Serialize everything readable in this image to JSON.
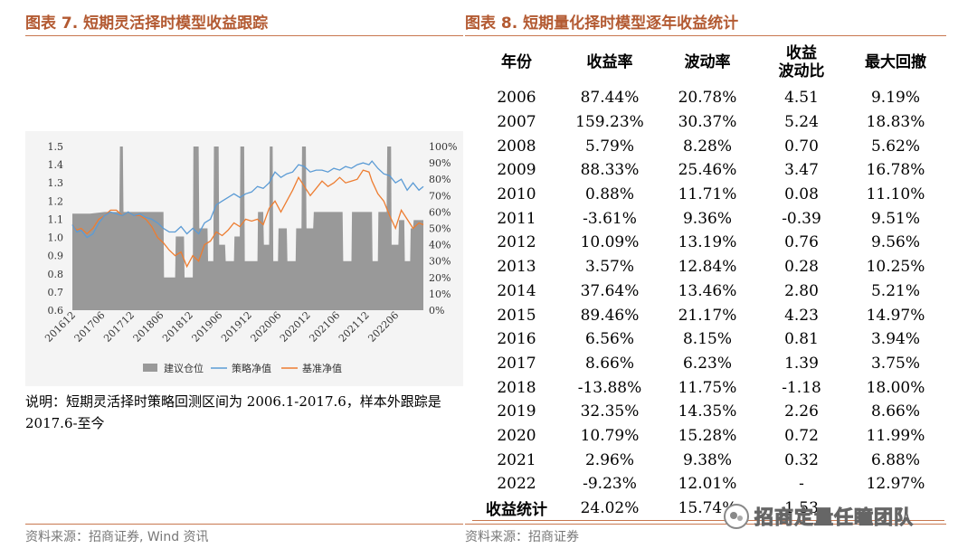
{
  "left_figure": {
    "title": "图表 7. 短期灵活择时模型收益跟踪",
    "note": "说明：短期灵活择时策略回测区间为 2006.1-2017.6，样本外跟踪是 2017.6-至今",
    "source": "资料来源：招商证券, Wind 资讯"
  },
  "right_figure": {
    "title": "图表 8. 短期量化择时模型逐年收益统计",
    "source": "资料来源：招商证券"
  },
  "watermark": {
    "text": "招商定量任瞳团队",
    "icon": "wechat-icon"
  },
  "table": {
    "headers": [
      "年份",
      "收益率",
      "波动率",
      "收益\n波动比",
      "最大回撤"
    ],
    "rows": [
      [
        "2006",
        "87.44%",
        "20.78%",
        "4.51",
        "9.19%"
      ],
      [
        "2007",
        "159.23%",
        "30.37%",
        "5.24",
        "18.83%"
      ],
      [
        "2008",
        "5.79%",
        "8.28%",
        "0.70",
        "5.62%"
      ],
      [
        "2009",
        "88.33%",
        "25.46%",
        "3.47",
        "16.78%"
      ],
      [
        "2010",
        "0.88%",
        "11.71%",
        "0.08",
        "11.10%"
      ],
      [
        "2011",
        "-3.61%",
        "9.36%",
        "-0.39",
        "9.51%"
      ],
      [
        "2012",
        "10.09%",
        "13.19%",
        "0.76",
        "9.56%"
      ],
      [
        "2013",
        "3.57%",
        "12.84%",
        "0.28",
        "10.25%"
      ],
      [
        "2014",
        "37.64%",
        "13.46%",
        "2.80",
        "5.21%"
      ],
      [
        "2015",
        "89.46%",
        "21.17%",
        "4.23",
        "14.97%"
      ],
      [
        "2016",
        "6.56%",
        "8.15%",
        "0.81",
        "3.94%"
      ],
      [
        "2017",
        "8.66%",
        "6.23%",
        "1.39",
        "3.75%"
      ],
      [
        "2018",
        "-13.88%",
        "11.75%",
        "-1.18",
        "18.00%"
      ],
      [
        "2019",
        "32.35%",
        "14.35%",
        "2.26",
        "8.66%"
      ],
      [
        "2020",
        "10.79%",
        "15.28%",
        "0.72",
        "11.99%"
      ],
      [
        "2021",
        "2.96%",
        "9.38%",
        "0.32",
        "6.88%"
      ],
      [
        "2022",
        "-9.23%",
        "12.01%",
        "-",
        "12.97%"
      ],
      [
        "收益统计",
        "24.02%",
        "15.74%",
        "1.53",
        ""
      ]
    ]
  },
  "chart_data": {
    "type": "line",
    "categories": [
      "201612",
      "201706",
      "201712",
      "201806",
      "201812",
      "201906",
      "201912",
      "202006",
      "202012",
      "202106",
      "202112",
      "202206"
    ],
    "series": [
      {
        "name": "建议仓位",
        "kind": "bar",
        "axis": "right",
        "color": "#999999"
      },
      {
        "name": "策略净值",
        "kind": "line",
        "axis": "left",
        "color": "#5b9bd5"
      },
      {
        "name": "基准净值",
        "kind": "line",
        "axis": "left",
        "color": "#ed7d31"
      }
    ],
    "position_steps": [
      [
        0,
        0.59
      ],
      [
        0.6,
        0.59
      ],
      [
        1.1,
        0.6
      ],
      [
        1.6,
        0.6
      ],
      [
        1.62,
        1.0
      ],
      [
        1.72,
        1.0
      ],
      [
        1.74,
        0.6
      ],
      [
        3.1,
        0.6
      ],
      [
        3.12,
        0.2
      ],
      [
        3.5,
        0.2
      ],
      [
        3.52,
        0.45
      ],
      [
        3.8,
        0.45
      ],
      [
        3.82,
        0.2
      ],
      [
        4.1,
        0.2
      ],
      [
        4.12,
        1.0
      ],
      [
        4.3,
        1.0
      ],
      [
        4.32,
        0.5
      ],
      [
        4.6,
        0.5
      ],
      [
        4.62,
        0.3
      ],
      [
        4.8,
        0.3
      ],
      [
        4.82,
        1.0
      ],
      [
        4.98,
        1.0
      ],
      [
        5.0,
        0.4
      ],
      [
        5.2,
        0.4
      ],
      [
        5.22,
        0.3
      ],
      [
        5.5,
        0.3
      ],
      [
        5.52,
        0.45
      ],
      [
        5.7,
        0.45
      ],
      [
        5.72,
        1.0
      ],
      [
        5.85,
        1.0
      ],
      [
        5.87,
        0.3
      ],
      [
        6.3,
        0.3
      ],
      [
        6.32,
        0.6
      ],
      [
        6.5,
        0.6
      ],
      [
        6.52,
        0.4
      ],
      [
        6.7,
        0.4
      ],
      [
        6.72,
        1.0
      ],
      [
        6.82,
        1.0
      ],
      [
        6.84,
        0.3
      ],
      [
        7.0,
        0.3
      ],
      [
        7.02,
        0.5
      ],
      [
        7.3,
        0.5
      ],
      [
        7.32,
        0.3
      ],
      [
        7.6,
        0.3
      ],
      [
        7.62,
        0.5
      ],
      [
        7.8,
        0.5
      ],
      [
        7.82,
        1.0
      ],
      [
        7.95,
        1.0
      ],
      [
        7.97,
        0.5
      ],
      [
        8.2,
        0.5
      ],
      [
        8.22,
        0.6
      ],
      [
        9.2,
        0.6
      ],
      [
        9.22,
        0.3
      ],
      [
        9.5,
        0.3
      ],
      [
        9.52,
        0.6
      ],
      [
        10.2,
        0.6
      ],
      [
        10.22,
        0.3
      ],
      [
        10.4,
        0.3
      ],
      [
        10.42,
        0.6
      ],
      [
        10.7,
        0.6
      ],
      [
        10.72,
        1.0
      ],
      [
        10.85,
        1.0
      ],
      [
        10.87,
        0.4
      ],
      [
        11.1,
        0.4
      ],
      [
        11.12,
        0.55
      ],
      [
        11.3,
        0.55
      ],
      [
        11.32,
        0.3
      ],
      [
        11.5,
        0.3
      ],
      [
        11.52,
        0.5
      ],
      [
        11.6,
        0.5
      ],
      [
        11.62,
        0.55
      ],
      [
        11.95,
        0.55
      ]
    ],
    "strategy_nav": [
      [
        0,
        1.07
      ],
      [
        0.15,
        1.03
      ],
      [
        0.3,
        1.04
      ],
      [
        0.5,
        1.0
      ],
      [
        0.7,
        1.02
      ],
      [
        0.9,
        1.08
      ],
      [
        1.1,
        1.12
      ],
      [
        1.3,
        1.14
      ],
      [
        1.5,
        1.13
      ],
      [
        1.7,
        1.12
      ],
      [
        1.9,
        1.14
      ],
      [
        2.1,
        1.12
      ],
      [
        2.3,
        1.13
      ],
      [
        2.5,
        1.11
      ],
      [
        2.7,
        1.1
      ],
      [
        2.9,
        1.08
      ],
      [
        3.1,
        1.05
      ],
      [
        3.3,
        1.03
      ],
      [
        3.5,
        1.03
      ],
      [
        3.7,
        1.06
      ],
      [
        3.9,
        1.02
      ],
      [
        4.1,
        1.05
      ],
      [
        4.3,
        1.02
      ],
      [
        4.5,
        1.08
      ],
      [
        4.7,
        1.1
      ],
      [
        4.9,
        1.18
      ],
      [
        5.1,
        1.2
      ],
      [
        5.3,
        1.22
      ],
      [
        5.5,
        1.24
      ],
      [
        5.7,
        1.22
      ],
      [
        5.9,
        1.24
      ],
      [
        6.1,
        1.25
      ],
      [
        6.3,
        1.28
      ],
      [
        6.5,
        1.27
      ],
      [
        6.7,
        1.3
      ],
      [
        6.9,
        1.36
      ],
      [
        7.1,
        1.33
      ],
      [
        7.3,
        1.35
      ],
      [
        7.5,
        1.36
      ],
      [
        7.7,
        1.4
      ],
      [
        7.9,
        1.39
      ],
      [
        8.1,
        1.36
      ],
      [
        8.3,
        1.37
      ],
      [
        8.5,
        1.37
      ],
      [
        8.7,
        1.36
      ],
      [
        8.9,
        1.38
      ],
      [
        9.1,
        1.37
      ],
      [
        9.3,
        1.39
      ],
      [
        9.5,
        1.38
      ],
      [
        9.7,
        1.4
      ],
      [
        9.9,
        1.41
      ],
      [
        10.1,
        1.4
      ],
      [
        10.2,
        1.42
      ],
      [
        10.4,
        1.38
      ],
      [
        10.6,
        1.35
      ],
      [
        10.8,
        1.34
      ],
      [
        11.0,
        1.3
      ],
      [
        11.2,
        1.32
      ],
      [
        11.4,
        1.26
      ],
      [
        11.6,
        1.3
      ],
      [
        11.8,
        1.26
      ],
      [
        11.95,
        1.28
      ]
    ],
    "benchmark_nav": [
      [
        0,
        1.07
      ],
      [
        0.15,
        1.04
      ],
      [
        0.3,
        1.05
      ],
      [
        0.5,
        1.02
      ],
      [
        0.7,
        1.05
      ],
      [
        0.9,
        1.1
      ],
      [
        1.1,
        1.12
      ],
      [
        1.3,
        1.15
      ],
      [
        1.5,
        1.15
      ],
      [
        1.7,
        1.12
      ],
      [
        1.9,
        1.14
      ],
      [
        2.1,
        1.12
      ],
      [
        2.3,
        1.12
      ],
      [
        2.5,
        1.1
      ],
      [
        2.7,
        1.06
      ],
      [
        2.9,
        1.0
      ],
      [
        3.1,
        0.97
      ],
      [
        3.3,
        0.93
      ],
      [
        3.5,
        0.9
      ],
      [
        3.7,
        0.92
      ],
      [
        3.9,
        0.84
      ],
      [
        4.1,
        0.9
      ],
      [
        4.3,
        0.87
      ],
      [
        4.5,
        0.96
      ],
      [
        4.7,
        0.98
      ],
      [
        4.9,
        1.03
      ],
      [
        5.1,
        1.01
      ],
      [
        5.3,
        1.04
      ],
      [
        5.5,
        1.08
      ],
      [
        5.7,
        1.06
      ],
      [
        5.9,
        1.1
      ],
      [
        6.1,
        1.09
      ],
      [
        6.3,
        1.1
      ],
      [
        6.5,
        1.07
      ],
      [
        6.7,
        1.16
      ],
      [
        6.9,
        1.2
      ],
      [
        7.1,
        1.14
      ],
      [
        7.3,
        1.2
      ],
      [
        7.5,
        1.26
      ],
      [
        7.7,
        1.33
      ],
      [
        7.9,
        1.28
      ],
      [
        8.1,
        1.23
      ],
      [
        8.3,
        1.27
      ],
      [
        8.5,
        1.31
      ],
      [
        8.7,
        1.28
      ],
      [
        8.9,
        1.3
      ],
      [
        9.1,
        1.33
      ],
      [
        9.3,
        1.3
      ],
      [
        9.5,
        1.31
      ],
      [
        9.7,
        1.32
      ],
      [
        9.9,
        1.37
      ],
      [
        10.1,
        1.36
      ],
      [
        10.2,
        1.31
      ],
      [
        10.4,
        1.24
      ],
      [
        10.6,
        1.2
      ],
      [
        10.8,
        1.12
      ],
      [
        11.0,
        1.05
      ],
      [
        11.2,
        1.15
      ],
      [
        11.4,
        1.1
      ],
      [
        11.6,
        1.05
      ],
      [
        11.8,
        1.08
      ],
      [
        11.95,
        1.07
      ]
    ],
    "y_left": {
      "min": 0.6,
      "max": 1.5,
      "ticks": [
        "1.5",
        "1.4",
        "1.3",
        "1.2",
        "1.1",
        "1.0",
        "0.9",
        "0.8",
        "0.7",
        "0.6"
      ]
    },
    "y_right": {
      "min": 0,
      "max": 1.0,
      "ticks": [
        "100%",
        "90%",
        "80%",
        "70%",
        "60%",
        "50%",
        "40%",
        "30%",
        "20%",
        "10%",
        "0%"
      ]
    },
    "legend_position": "bottom",
    "grid": false
  }
}
